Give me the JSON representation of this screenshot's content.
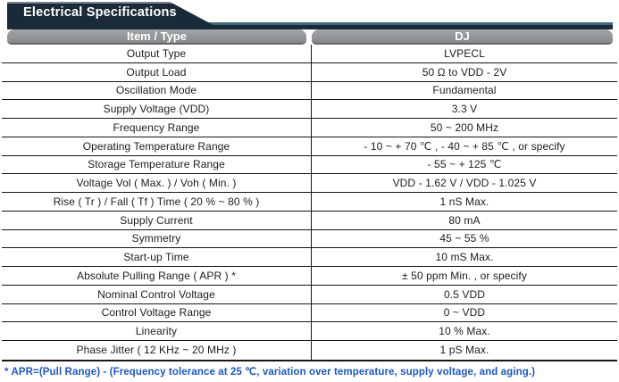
{
  "title": "Electrical Specifications",
  "table": {
    "columns": {
      "item": "Item / Type",
      "type": "DJ"
    },
    "rows": [
      {
        "item": "Output Type",
        "value": "LVPECL"
      },
      {
        "item": "Output Load",
        "value": "50 Ω to VDD - 2V"
      },
      {
        "item": "Oscillation Mode",
        "value": "Fundamental"
      },
      {
        "item": "Supply Voltage (VDD)",
        "value": "3.3 V"
      },
      {
        "item": "Frequency Range",
        "value": "50 ~ 200 MHz"
      },
      {
        "item": "Operating Temperature Range",
        "value": "- 10 ~ + 70 ℃ , - 40 ~ + 85 ℃ , or specify"
      },
      {
        "item": "Storage Temperature Range",
        "value": "- 55 ~ + 125 ℃"
      },
      {
        "item": "Voltage Vol ( Max. ) / Voh ( Min. )",
        "value": "VDD - 1.62 V / VDD - 1.025 V"
      },
      {
        "item": "Rise ( Tr ) / Fall ( Tf ) Time ( 20 % ~ 80 % )",
        "value": "1 nS Max."
      },
      {
        "item": "Supply Current",
        "value": "80 mA"
      },
      {
        "item": "Symmetry",
        "value": "45 ~ 55 %"
      },
      {
        "item": "Start-up Time",
        "value": "10 mS Max."
      },
      {
        "item": "Absolute Pulling Range ( APR ) *",
        "value": "± 50 ppm Min. , or specify"
      },
      {
        "item": "Nominal Control Voltage",
        "value": "0.5 VDD"
      },
      {
        "item": "Control Voltage Range",
        "value": "0 ~ VDD"
      },
      {
        "item": "Linearity",
        "value": "10 % Max."
      },
      {
        "item": "Phase Jitter ( 12 KHz ~ 20 MHz )",
        "value": "1 pS Max."
      }
    ]
  },
  "footnote": "* APR=(Pull Range) - (Frequency tolerance at 25 ℃, variation over temperature, supply voltage, and aging.)",
  "colors": {
    "navy": "#1b2a39",
    "teal_accent": "#3e6b7c",
    "header_gray": "#8a8d90",
    "grid_line": "#161616",
    "footnote_blue": "#1c59c3"
  }
}
